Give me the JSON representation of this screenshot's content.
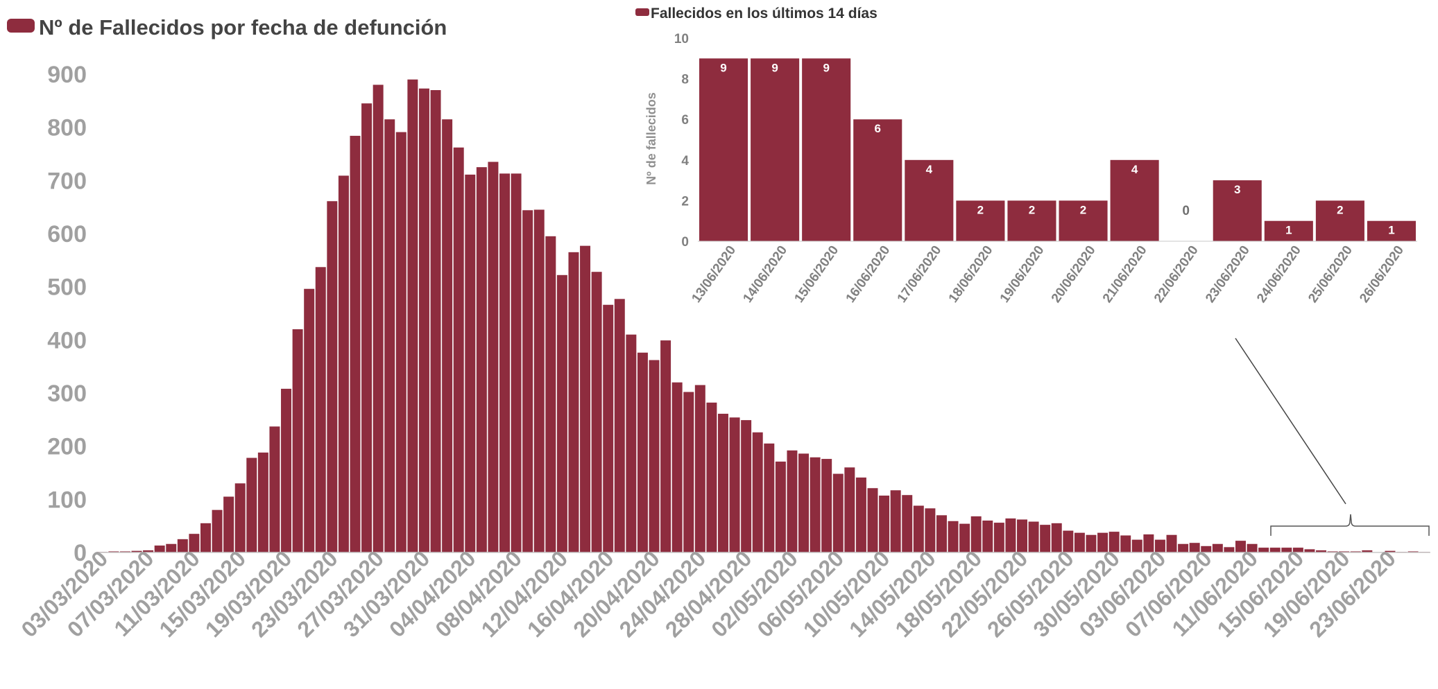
{
  "colors": {
    "bar": "#8e2c3e",
    "tick": "#a0a0a0",
    "axis": "#c8c8c8",
    "connector": "#444444"
  },
  "chart_data": [
    {
      "type": "bar",
      "title": "Nº de Fallecidos por fecha de defunción",
      "legend": "Nº de Fallecidos por fecha de defunción",
      "legend_position": "top-left",
      "start_date": "03/03/2020",
      "ylim": [
        0,
        900
      ],
      "yticks": [
        0,
        100,
        200,
        300,
        400,
        500,
        600,
        700,
        800,
        900
      ],
      "xtick_labels": [
        "03/03/2020",
        "07/03/2020",
        "11/03/2020",
        "15/03/2020",
        "19/03/2020",
        "23/03/2020",
        "27/03/2020",
        "31/03/2020",
        "04/04/2020",
        "08/04/2020",
        "12/04/2020",
        "16/04/2020",
        "20/04/2020",
        "24/04/2020",
        "28/04/2020",
        "02/05/2020",
        "06/05/2020",
        "10/05/2020",
        "14/05/2020",
        "18/05/2020",
        "22/05/2020",
        "26/05/2020",
        "30/05/2020",
        "03/06/2020",
        "07/06/2020",
        "11/06/2020",
        "15/06/2020",
        "19/06/2020",
        "23/06/2020"
      ],
      "grid": false,
      "values": [
        1,
        2,
        2,
        3,
        4,
        13,
        16,
        25,
        35,
        55,
        80,
        105,
        130,
        178,
        188,
        237,
        308,
        420,
        496,
        537,
        661,
        709,
        784,
        845,
        880,
        815,
        791,
        890,
        873,
        870,
        815,
        762,
        711,
        725,
        735,
        713,
        713,
        644,
        645,
        595,
        522,
        565,
        577,
        528,
        466,
        477,
        410,
        376,
        362,
        399,
        320,
        302,
        315,
        282,
        261,
        254,
        249,
        226,
        205,
        171,
        192,
        186,
        179,
        176,
        148,
        160,
        141,
        121,
        107,
        117,
        108,
        88,
        83,
        70,
        59,
        54,
        68,
        60,
        56,
        64,
        62,
        58,
        52,
        55,
        41,
        37,
        33,
        37,
        39,
        32,
        24,
        34,
        24,
        33,
        16,
        18,
        12,
        16,
        10,
        22,
        16,
        9,
        9,
        9,
        9,
        6,
        4,
        2,
        2,
        2,
        4,
        0,
        3,
        1,
        2,
        1
      ]
    },
    {
      "type": "bar",
      "title": "Fallecidos en los últimos 14 días",
      "legend": "Fallecidos en los últimos 14 días",
      "legend_position": "top",
      "ylabel": "Nº de fallecidos",
      "ylim": [
        0,
        10
      ],
      "yticks": [
        0,
        2,
        4,
        6,
        8,
        10
      ],
      "grid": false,
      "categories": [
        "13/06/2020",
        "14/06/2020",
        "15/06/2020",
        "16/06/2020",
        "17/06/2020",
        "18/06/2020",
        "19/06/2020",
        "20/06/2020",
        "21/06/2020",
        "22/06/2020",
        "23/06/2020",
        "24/06/2020",
        "25/06/2020",
        "26/06/2020"
      ],
      "values": [
        9,
        9,
        9,
        6,
        4,
        2,
        2,
        2,
        4,
        0,
        3,
        1,
        2,
        1
      ]
    }
  ]
}
